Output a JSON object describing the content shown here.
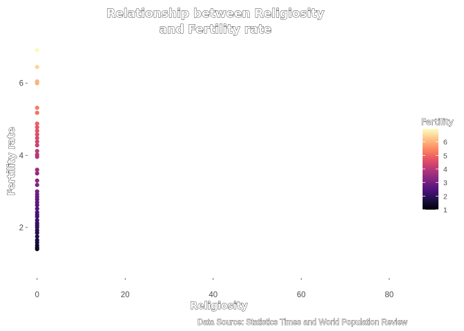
{
  "chart_data": {
    "type": "scatter",
    "title_lines": [
      "Relationship between Religiosity",
      "and Fertility rate"
    ],
    "xlabel": "Religiosity",
    "ylabel": "Fertility rate",
    "caption": "Data Source: Statistics Times and World Population Review",
    "xlim": [
      -2,
      86
    ],
    "ylim": [
      0.62,
      7.2
    ],
    "x_ticks": [
      0,
      20,
      40,
      60,
      80
    ],
    "y_ticks": [
      2,
      4,
      6
    ],
    "grid": false,
    "legend": {
      "title": "Fertility",
      "placement": "right",
      "min": 1,
      "max": 6.95,
      "ticks": [
        1,
        2,
        3,
        4,
        5,
        6
      ]
    },
    "colormap": [
      "#000004",
      "#1d1147",
      "#51127c",
      "#822681",
      "#b73779",
      "#e75263",
      "#fc8961",
      "#fec287",
      "#fcfdbf"
    ],
    "points": [
      {
        "x": 0,
        "y": 6.92
      },
      {
        "x": 0,
        "y": 6.45
      },
      {
        "x": 0,
        "y": 6.05
      },
      {
        "x": 0,
        "y": 6.0
      },
      {
        "x": 0,
        "y": 5.32
      },
      {
        "x": 0,
        "y": 5.18
      },
      {
        "x": 0,
        "y": 4.88
      },
      {
        "x": 0,
        "y": 4.78
      },
      {
        "x": 0,
        "y": 4.68
      },
      {
        "x": 0,
        "y": 4.58
      },
      {
        "x": 0,
        "y": 4.48
      },
      {
        "x": 0,
        "y": 4.38
      },
      {
        "x": 0,
        "y": 4.28
      },
      {
        "x": 0,
        "y": 4.12
      },
      {
        "x": 0,
        "y": 4.02
      },
      {
        "x": 0,
        "y": 3.96
      },
      {
        "x": 0,
        "y": 3.6
      },
      {
        "x": 0,
        "y": 3.5
      },
      {
        "x": 0,
        "y": 3.3
      },
      {
        "x": 0,
        "y": 3.18
      },
      {
        "x": 0,
        "y": 3.0
      },
      {
        "x": 0,
        "y": 2.92
      },
      {
        "x": 0,
        "y": 2.85
      },
      {
        "x": 0,
        "y": 2.78
      },
      {
        "x": 0,
        "y": 2.7
      },
      {
        "x": 0,
        "y": 2.62
      },
      {
        "x": 0,
        "y": 2.52
      },
      {
        "x": 0,
        "y": 2.42
      },
      {
        "x": 0,
        "y": 2.35
      },
      {
        "x": 0,
        "y": 2.3
      },
      {
        "x": 0,
        "y": 2.2
      },
      {
        "x": 0,
        "y": 2.12
      },
      {
        "x": 0,
        "y": 2.06
      },
      {
        "x": 0,
        "y": 2.0
      },
      {
        "x": 0,
        "y": 1.92
      },
      {
        "x": 0,
        "y": 1.85
      },
      {
        "x": 0,
        "y": 1.75
      },
      {
        "x": 0,
        "y": 1.65
      },
      {
        "x": 0,
        "y": 1.58
      },
      {
        "x": 0,
        "y": 1.5
      },
      {
        "x": 0,
        "y": 1.44
      },
      {
        "x": 0,
        "y": 1.4
      }
    ]
  }
}
